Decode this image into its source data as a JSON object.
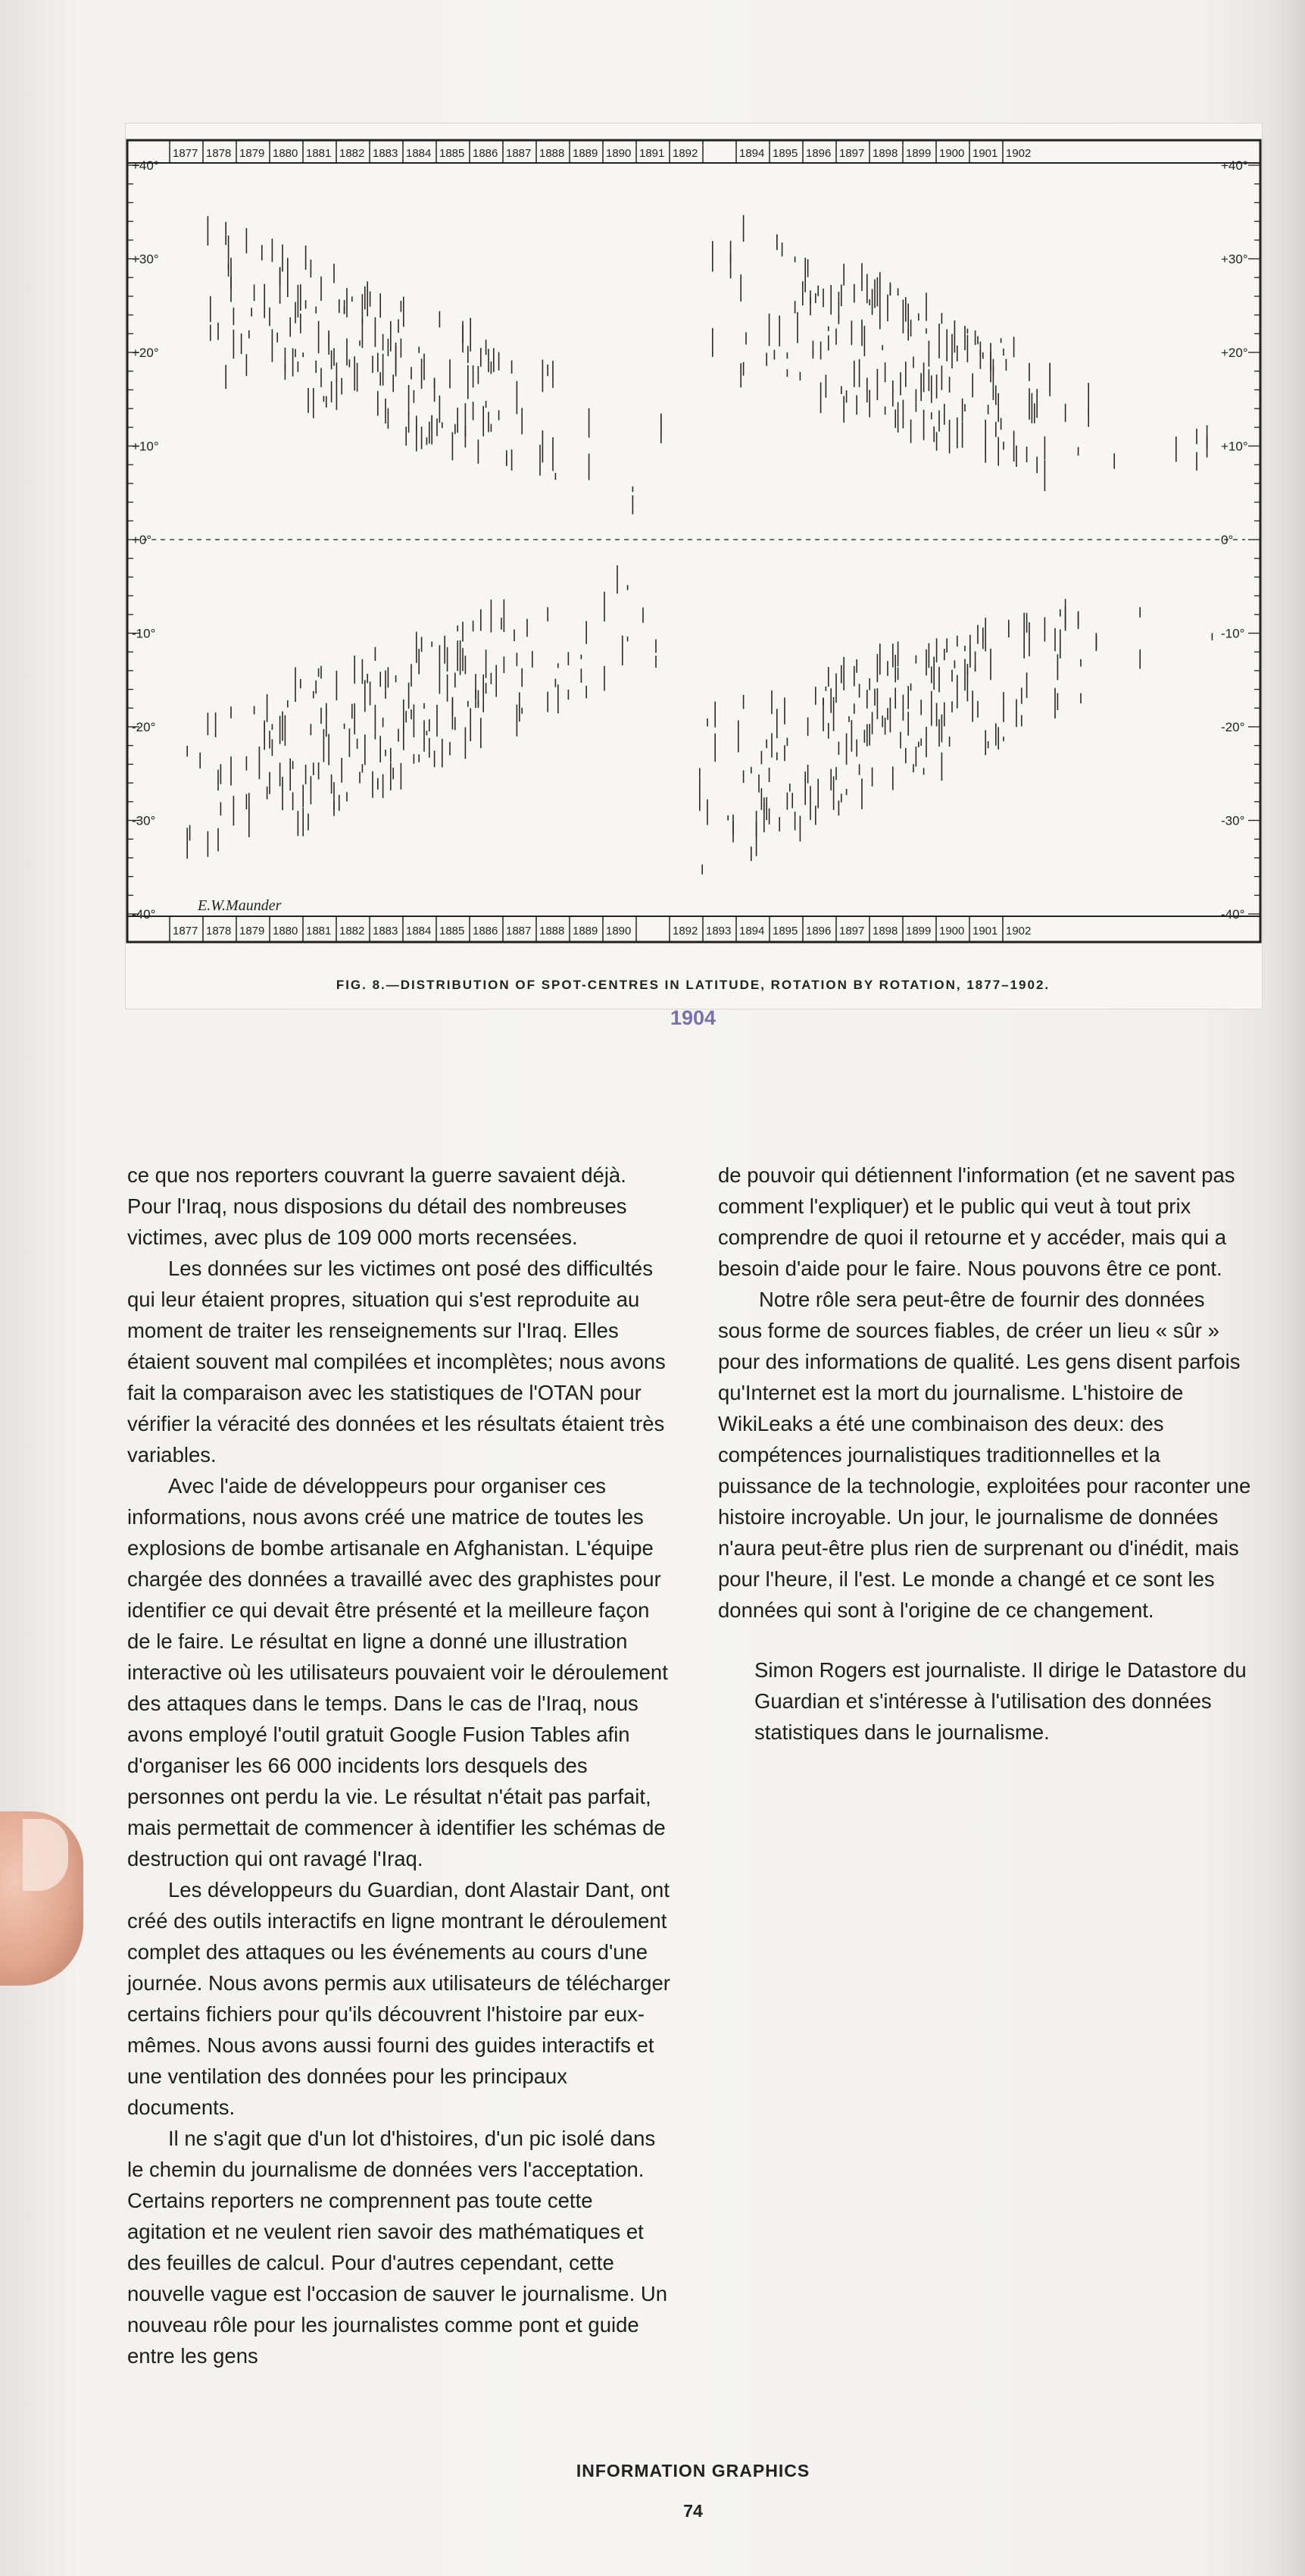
{
  "figure": {
    "top_years": [
      "1877",
      "1878",
      "1879",
      "1880",
      "1881",
      "1882",
      "1883",
      "1884",
      "1885",
      "1886",
      "1887",
      "1888",
      "1889",
      "1890",
      "1891",
      "1892",
      "",
      "1894",
      "1895",
      "1896",
      "1897",
      "1898",
      "1899",
      "1900",
      "1901",
      "1902"
    ],
    "bottom_years": [
      "1877",
      "1878",
      "1879",
      "1880",
      "1881",
      "1882",
      "1883",
      "1884",
      "1885",
      "1886",
      "1887",
      "1888",
      "1889",
      "1890",
      "",
      "1892",
      "1893",
      "1894",
      "1895",
      "1896",
      "1897",
      "1898",
      "1899",
      "1900",
      "1901",
      "1902"
    ],
    "left_labels": [
      "+40°",
      "+30°",
      "+20°",
      "+10°",
      "+0°",
      "-10°",
      "-20°",
      "-30°",
      "-40°"
    ],
    "right_labels": [
      "+40°",
      "+30°",
      "+20°",
      "+10°",
      "0°",
      "-10°",
      "-20°",
      "-30°",
      "-40°"
    ],
    "signature": "E.W.Maunder",
    "caption": "FIG. 8.—DISTRIBUTION OF SPOT-CENTRES IN LATITUDE, ROTATION BY ROTATION, 1877–1902.",
    "year": "1904"
  },
  "left_column": [
    "ce que nos reporters couvrant la guerre savaient déjà. Pour l'Iraq, nous disposions du détail des nombreuses victimes, avec plus de 109 000 morts recensées.",
    "Les données sur les victimes ont posé des difficultés qui leur étaient propres, situation qui s'est reproduite au moment de traiter les renseignements sur l'Iraq. Elles étaient souvent mal compilées et incomplètes; nous avons fait la comparaison avec les statistiques de l'OTAN pour vérifier la véracité des données et les résultats étaient très variables.",
    "Avec l'aide de développeurs pour organiser ces informations, nous avons créé une matrice de toutes les explosions de bombe artisanale en Afghanistan. L'équipe chargée des données a travaillé avec des graphistes pour identifier ce qui devait être présenté et la meilleure façon de le faire. Le résultat en ligne a donné une illustration interactive où les utilisateurs pouvaient voir le déroulement des attaques dans le temps. Dans le cas de l'Iraq, nous avons employé l'outil gratuit Google Fusion Tables afin d'organiser les 66 000 incidents lors desquels des personnes ont perdu la vie. Le résultat n'était pas parfait, mais permettait de commencer à identifier les schémas de destruction qui ont ravagé l'Iraq.",
    "Les développeurs du Guardian, dont Alastair Dant, ont créé des outils interactifs en ligne montrant le déroulement complet des attaques ou les événements au cours d'une journée. Nous avons permis aux utilisateurs de télécharger certains fichiers pour qu'ils découvrent l'histoire par eux-mêmes. Nous avons aussi fourni des guides interactifs et une ventilation des données pour les principaux documents.",
    "Il ne s'agit que d'un lot d'histoires, d'un pic isolé dans le chemin du journalisme de données vers l'acceptation. Certains reporters ne comprennent pas toute cette agitation et ne veulent rien savoir des mathématiques et des feuilles de calcul. Pour d'autres cependant, cette nouvelle vague est l'occasion de sauver le journalisme. Un nouveau rôle pour les journalistes comme pont et guide entre les gens"
  ],
  "right_column": [
    "de pouvoir qui détiennent l'information (et ne savent pas comment l'expliquer) et le public qui veut à tout prix comprendre de quoi il retourne et y accéder, mais qui a besoin d'aide pour le faire. Nous pouvons être ce pont.",
    "Notre rôle sera peut-être de fournir des données sous forme de sources fiables, de créer un lieu « sûr » pour des informations de qualité. Les gens disent parfois qu'Internet est la mort du journalisme. L'histoire de WikiLeaks a été une combinaison des deux: des compétences journalistiques traditionnelles et la puissance de la technologie, exploitées pour raconter une histoire incroyable. Un jour, le journalisme de données n'aura peut-être plus rien de surprenant ou d'inédit, mais pour l'heure, il l'est. Le monde a changé et ce sont les données qui sont à l'origine de ce changement.",
    "Simon Rogers est journaliste. Il dirige le Datastore du Guardian et s'intéresse à l'utilisation des données statistiques dans le journalisme."
  ],
  "footer": {
    "section": "INFORMATION GRAPHICS",
    "page": "74"
  }
}
